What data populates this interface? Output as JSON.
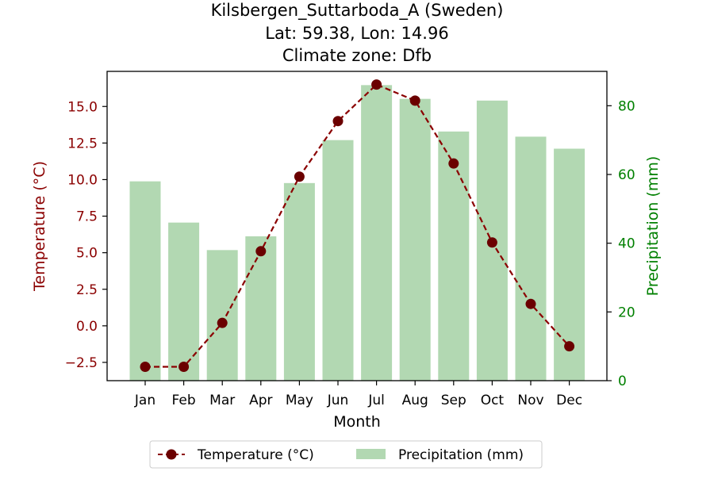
{
  "chart_data": {
    "type": "bar+line",
    "title_lines": [
      "Kilsbergen_Suttarboda_A (Sweden)",
      "Lat: 59.38, Lon: 14.96",
      "Climate zone: Dfb"
    ],
    "xlabel": "Month",
    "ylabel_left": "Temperature (°C)",
    "ylabel_right": "Precipitation (mm)",
    "categories": [
      "Jan",
      "Feb",
      "Mar",
      "Apr",
      "May",
      "Jun",
      "Jul",
      "Aug",
      "Sep",
      "Oct",
      "Nov",
      "Dec"
    ],
    "series": [
      {
        "name": "Temperature (°C)",
        "type": "line",
        "axis": "left",
        "values": [
          -2.8,
          -2.8,
          0.2,
          5.1,
          10.2,
          14.0,
          16.5,
          15.4,
          11.1,
          5.7,
          1.5,
          -1.4
        ]
      },
      {
        "name": "Precipitation (mm)",
        "type": "bar",
        "axis": "right",
        "values": [
          58,
          46,
          38,
          42,
          57.5,
          70,
          86,
          82,
          72.5,
          81.5,
          71,
          67.5
        ]
      }
    ],
    "ylim_left": [
      -3.75,
      17.4
    ],
    "ylim_right": [
      0,
      90
    ],
    "yticks_left": [
      "−2.5",
      "0.0",
      "2.5",
      "5.0",
      "7.5",
      "10.0",
      "12.5",
      "15.0"
    ],
    "yticks_right": [
      "0",
      "20",
      "40",
      "60",
      "80"
    ],
    "legend_position": "bottom-center",
    "colors": {
      "temperature": "#8b0000",
      "temperature_marker": "#6b0000",
      "precipitation": "#b2d8b2",
      "left_axis_text": "#8b0000",
      "right_axis_text": "#008000"
    }
  }
}
